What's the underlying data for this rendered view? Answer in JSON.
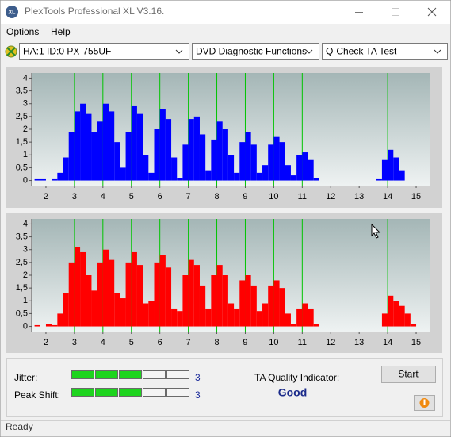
{
  "window": {
    "icon": "XL",
    "title": "PlexTools Professional XL V3.16."
  },
  "menu": [
    "Options",
    "Help"
  ],
  "toolbar": {
    "drive": "HA:1 ID:0  PX-755UF",
    "function": "DVD Diagnostic Functions",
    "test": "Q-Check TA Test"
  },
  "chart_data": [
    {
      "type": "histogram",
      "color": "#0000ff",
      "bins": [
        1.6,
        1.8,
        2.0,
        2.2,
        2.4,
        2.6,
        2.8,
        3.0,
        3.2,
        3.4,
        3.6,
        3.8,
        4.0,
        4.2,
        4.4,
        4.6,
        4.8,
        5.0,
        5.2,
        5.4,
        5.6,
        5.8,
        6.0,
        6.2,
        6.4,
        6.6,
        6.8,
        7.0,
        7.2,
        7.4,
        7.6,
        7.8,
        8.0,
        8.2,
        8.4,
        8.6,
        8.8,
        9.0,
        9.2,
        9.4,
        9.6,
        9.8,
        10.0,
        10.2,
        10.4,
        10.6,
        10.8,
        11.0,
        11.2,
        11.4,
        11.6,
        11.8,
        12.0,
        12.2,
        12.4,
        12.6,
        12.8,
        13.0,
        13.2,
        13.4,
        13.6,
        13.8,
        14.0,
        14.2,
        14.4,
        14.6
      ],
      "values": [
        0.05,
        0.05,
        0,
        0.05,
        0.3,
        0.9,
        1.9,
        2.7,
        3.0,
        2.6,
        1.9,
        2.3,
        3.0,
        2.7,
        1.5,
        0.5,
        1.9,
        2.9,
        2.6,
        1.0,
        0.3,
        2.0,
        2.8,
        2.4,
        0.9,
        0.1,
        1.4,
        2.4,
        2.5,
        1.8,
        0.4,
        1.6,
        2.3,
        2.0,
        1.0,
        0.3,
        1.5,
        1.9,
        1.4,
        0.3,
        0.6,
        1.4,
        1.7,
        1.5,
        0.6,
        0.2,
        1.0,
        1.1,
        0.8,
        0.1,
        0,
        0,
        0,
        0,
        0,
        0,
        0,
        0,
        0,
        0,
        0.05,
        0.8,
        1.2,
        0.9,
        0.4
      ],
      "xlim": [
        1.5,
        15.5
      ],
      "ylim": [
        -0.2,
        4.2
      ],
      "xticks": [
        2,
        3,
        4,
        5,
        6,
        7,
        8,
        9,
        10,
        11,
        12,
        13,
        14,
        15
      ],
      "yticks": [
        0,
        {
          "value": 0.5,
          "label": "0,5"
        },
        1,
        {
          "value": 1.5,
          "label": "1,5"
        },
        2,
        {
          "value": 2.5,
          "label": "2,5"
        },
        3,
        {
          "value": 3.5,
          "label": "3,5"
        },
        4
      ],
      "reference_lines": [
        3,
        4,
        5,
        6,
        7,
        8,
        9,
        10,
        11,
        14
      ]
    },
    {
      "type": "histogram",
      "color": "#ff0000",
      "bins": [
        1.6,
        1.8,
        2.0,
        2.2,
        2.4,
        2.6,
        2.8,
        3.0,
        3.2,
        3.4,
        3.6,
        3.8,
        4.0,
        4.2,
        4.4,
        4.6,
        4.8,
        5.0,
        5.2,
        5.4,
        5.6,
        5.8,
        6.0,
        6.2,
        6.4,
        6.6,
        6.8,
        7.0,
        7.2,
        7.4,
        7.6,
        7.8,
        8.0,
        8.2,
        8.4,
        8.6,
        8.8,
        9.0,
        9.2,
        9.4,
        9.6,
        9.8,
        10.0,
        10.2,
        10.4,
        10.6,
        10.8,
        11.0,
        11.2,
        11.4,
        11.6,
        11.8,
        12.0,
        12.2,
        12.4,
        12.6,
        12.8,
        13.0,
        13.2,
        13.4,
        13.6,
        13.8,
        14.0,
        14.2,
        14.4,
        14.6,
        14.8,
        15.0
      ],
      "values": [
        0.05,
        0,
        0.1,
        0.05,
        0.5,
        1.3,
        2.5,
        3.1,
        2.9,
        2.0,
        1.4,
        2.5,
        3.0,
        2.6,
        1.3,
        1.1,
        2.5,
        2.9,
        2.4,
        0.9,
        1.0,
        2.5,
        2.8,
        2.3,
        0.7,
        0.6,
        2.0,
        2.6,
        2.4,
        1.6,
        0.7,
        2.0,
        2.4,
        2.0,
        0.9,
        0.7,
        1.8,
        2.0,
        1.6,
        0.6,
        0.9,
        1.6,
        1.8,
        1.5,
        0.5,
        0.1,
        0.7,
        0.9,
        0.7,
        0.1,
        0,
        0,
        0,
        0,
        0,
        0,
        0,
        0,
        0,
        0,
        0,
        0.5,
        1.2,
        1.0,
        0.8,
        0.5,
        0.1
      ],
      "xlim": [
        1.5,
        15.5
      ],
      "ylim": [
        -0.2,
        4.2
      ],
      "xticks": [
        2,
        3,
        4,
        5,
        6,
        7,
        8,
        9,
        10,
        11,
        12,
        13,
        14,
        15
      ],
      "yticks": [
        0,
        {
          "value": 0.5,
          "label": "0,5"
        },
        1,
        {
          "value": 1.5,
          "label": "1,5"
        },
        2,
        {
          "value": 2.5,
          "label": "2,5"
        },
        3,
        {
          "value": 3.5,
          "label": "3,5"
        },
        4
      ],
      "reference_lines": [
        3,
        4,
        5,
        6,
        7,
        8,
        9,
        10,
        11,
        14
      ]
    }
  ],
  "quality": {
    "jitter": {
      "label": "Jitter:",
      "value": 3
    },
    "peak_shift": {
      "label": "Peak Shift:",
      "value": 3
    },
    "indicator_label": "TA Quality Indicator:",
    "result": "Good",
    "start": "Start"
  },
  "status": "Ready"
}
